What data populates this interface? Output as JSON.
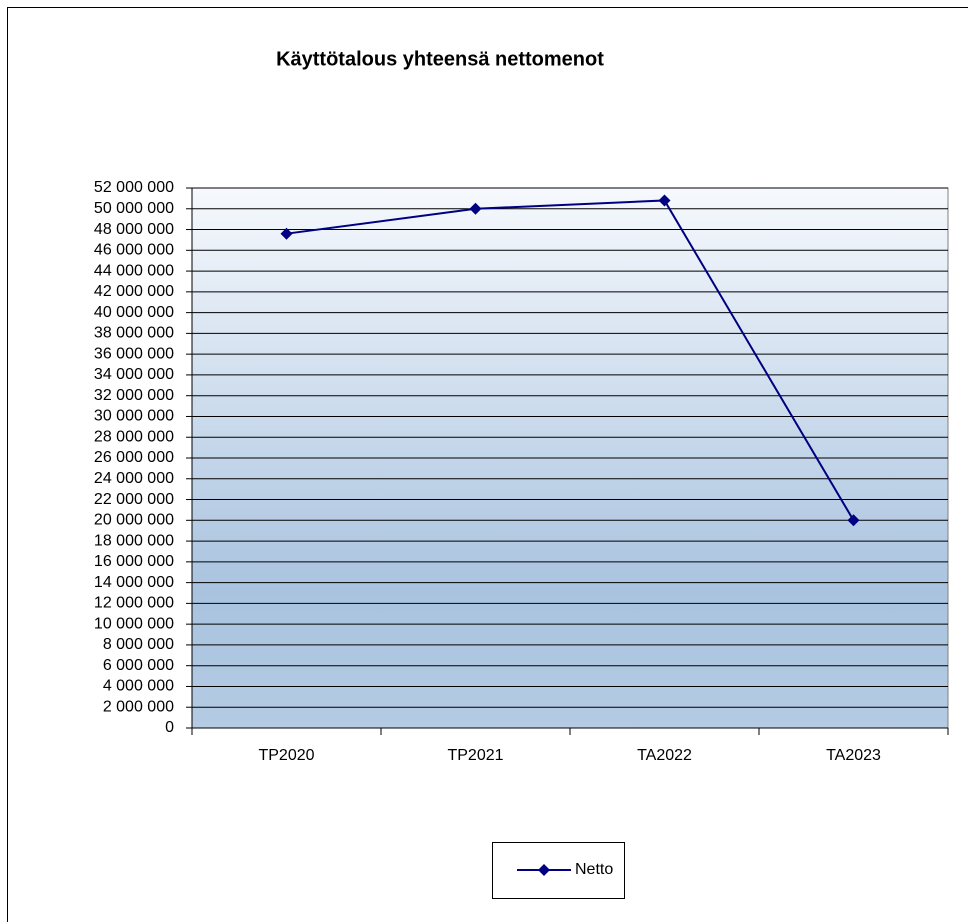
{
  "chart_data": {
    "type": "line",
    "title": "Käyttötalous yhteensä nettomenot",
    "categories": [
      "TP2020",
      "TP2021",
      "TA2022",
      "TA2023"
    ],
    "series": [
      {
        "name": "Netto",
        "color": "#000080",
        "values": [
          47600000,
          50000000,
          50800000,
          20000000
        ]
      }
    ],
    "ylim": [
      0,
      52000000
    ],
    "yticks": [
      {
        "value": 0,
        "label": "0"
      },
      {
        "value": 2000000,
        "label": "2 000 000"
      },
      {
        "value": 4000000,
        "label": "4 000 000"
      },
      {
        "value": 6000000,
        "label": "6 000 000"
      },
      {
        "value": 8000000,
        "label": "8 000 000"
      },
      {
        "value": 10000000,
        "label": "10 000 000"
      },
      {
        "value": 12000000,
        "label": "12 000 000"
      },
      {
        "value": 14000000,
        "label": "14 000 000"
      },
      {
        "value": 16000000,
        "label": "16 000 000"
      },
      {
        "value": 18000000,
        "label": "18 000 000"
      },
      {
        "value": 20000000,
        "label": "20 000 000"
      },
      {
        "value": 22000000,
        "label": "22 000 000"
      },
      {
        "value": 24000000,
        "label": "24 000 000"
      },
      {
        "value": 26000000,
        "label": "26 000 000"
      },
      {
        "value": 28000000,
        "label": "28 000 000"
      },
      {
        "value": 30000000,
        "label": "30 000 000"
      },
      {
        "value": 32000000,
        "label": "32 000 000"
      },
      {
        "value": 34000000,
        "label": "34 000 000"
      },
      {
        "value": 36000000,
        "label": "36 000 000"
      },
      {
        "value": 38000000,
        "label": "38 000 000"
      },
      {
        "value": 40000000,
        "label": "40 000 000"
      },
      {
        "value": 42000000,
        "label": "42 000 000"
      },
      {
        "value": 44000000,
        "label": "44 000 000"
      },
      {
        "value": 46000000,
        "label": "46 000 000"
      },
      {
        "value": 48000000,
        "label": "48 000 000"
      },
      {
        "value": 50000000,
        "label": "50 000 000"
      },
      {
        "value": 52000000,
        "label": "52 000 000"
      }
    ],
    "grid": true,
    "legend": "bottom"
  }
}
